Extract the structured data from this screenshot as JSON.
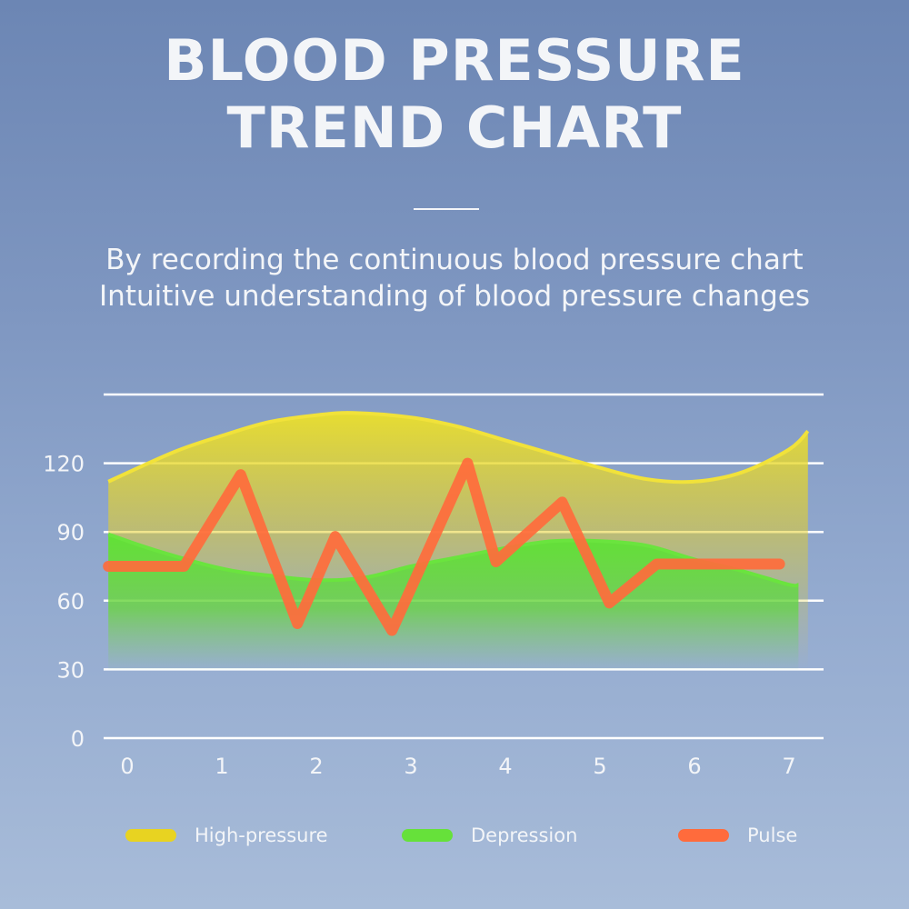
{
  "heading": {
    "line1": "BLOOD PRESSURE",
    "line2": "TREND CHART"
  },
  "subtitle": {
    "line1": "By recording the continuous blood pressure chart",
    "line2": "Intuitive understanding of blood pressure changes"
  },
  "colors": {
    "high": "#e8d321",
    "low": "#66e13a",
    "pulse": "#ff6b3c",
    "grid": "#ffffff",
    "text": "#f3f5f8"
  },
  "chart_data": {
    "type": "area",
    "x_ticks": [
      0,
      1,
      2,
      3,
      4,
      5,
      6,
      7
    ],
    "y_ticks": [
      0,
      30,
      60,
      90,
      120
    ],
    "xlim": [
      0,
      7
    ],
    "ylim": [
      0,
      150
    ],
    "grid": true,
    "legend_position": "bottom",
    "series": [
      {
        "name": "High-pressure",
        "kind": "area",
        "x": [
          -0.2,
          0.5,
          1.0,
          1.5,
          2.0,
          2.4,
          3.0,
          3.5,
          4.0,
          4.5,
          5.0,
          5.5,
          6.0,
          6.5,
          7.0,
          7.2
        ],
        "y": [
          112,
          125,
          132,
          138,
          141,
          142,
          140,
          136,
          130,
          124,
          118,
          113,
          112,
          116,
          126,
          134
        ]
      },
      {
        "name": "Depression",
        "kind": "area",
        "x": [
          -0.2,
          0.3,
          1.0,
          1.5,
          2.0,
          2.5,
          3.0,
          3.5,
          4.0,
          4.5,
          5.0,
          5.5,
          6.0,
          6.5,
          7.0,
          7.1
        ],
        "y": [
          89,
          82,
          74,
          71,
          69,
          70,
          75,
          79,
          83,
          86,
          86,
          84,
          78,
          73,
          67,
          67
        ]
      },
      {
        "name": "Pulse",
        "kind": "line",
        "x": [
          -0.2,
          0.6,
          1.2,
          1.8,
          2.2,
          2.8,
          3.6,
          3.9,
          4.6,
          5.1,
          5.6,
          6.2,
          6.9
        ],
        "y": [
          75,
          75,
          115,
          50,
          88,
          47,
          120,
          77,
          103,
          59,
          76,
          76,
          76
        ]
      }
    ]
  }
}
